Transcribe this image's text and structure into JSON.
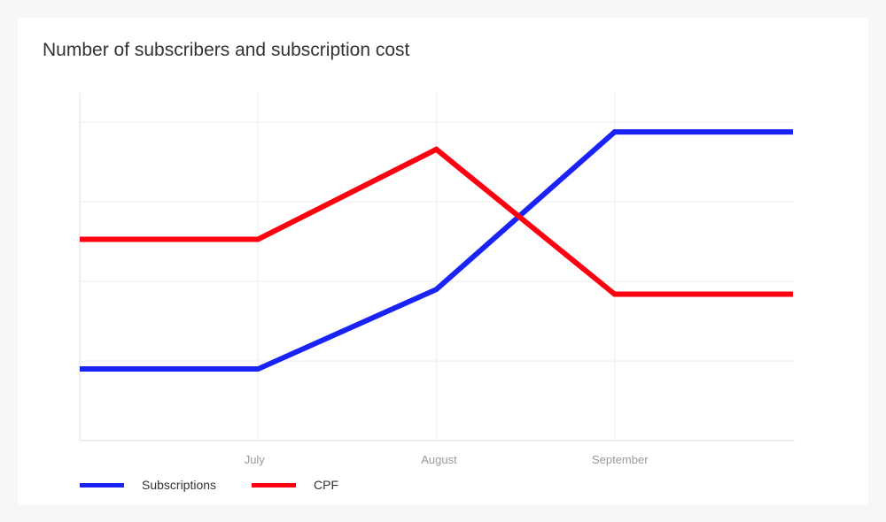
{
  "chart_data": {
    "type": "line",
    "title": "Number of subscribers and subscription cost",
    "categories": [
      "",
      "July",
      "August",
      "September",
      ""
    ],
    "series": [
      {
        "name": "Subscriptions",
        "color": "#1a23f5",
        "values": [
          0.9,
          0.9,
          1.9,
          3.88,
          3.88
        ]
      },
      {
        "name": "CPF",
        "color": "#ff0010",
        "values": [
          2.53,
          2.53,
          3.66,
          1.84,
          1.84
        ]
      }
    ],
    "xlabel": "",
    "ylabel": "",
    "ylim": [
      0,
      4.37
    ],
    "yticks": [
      1,
      2,
      3,
      4
    ],
    "grid": true,
    "legend": "bottom-left"
  }
}
